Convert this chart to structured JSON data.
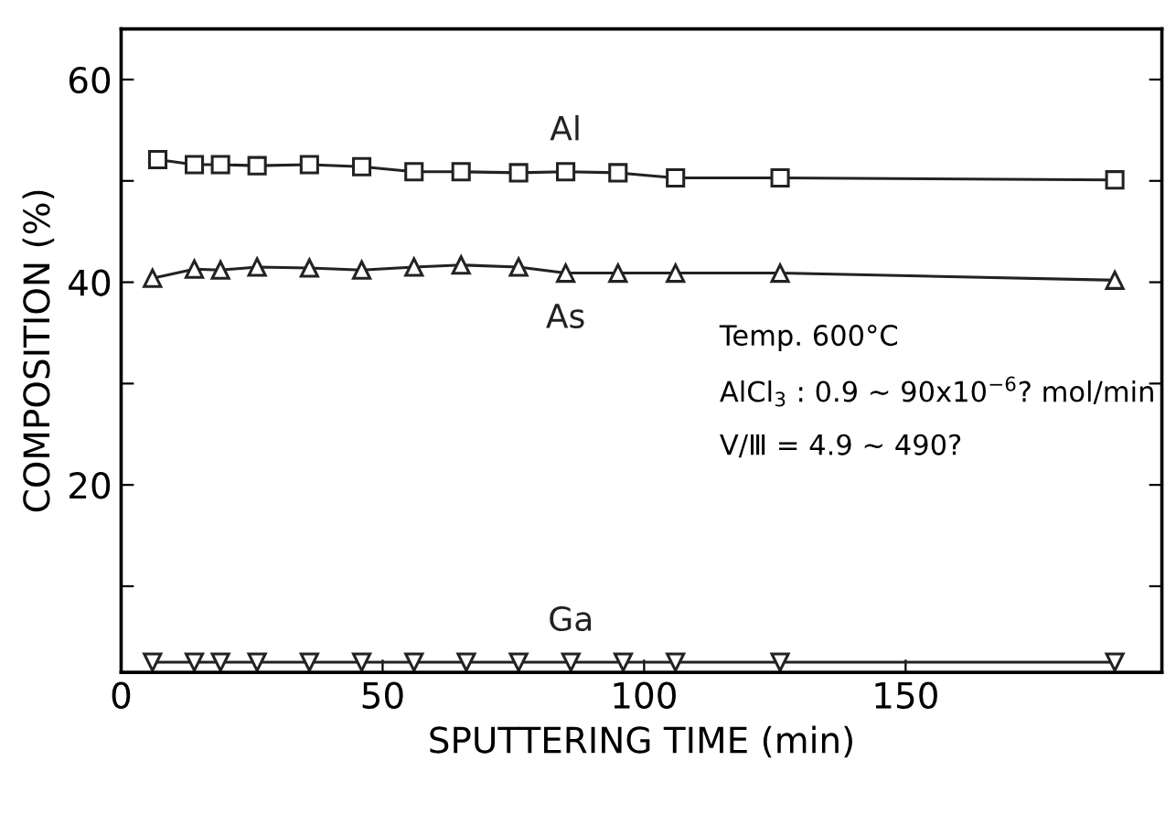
{
  "chart_data": {
    "type": "line",
    "xlabel": "SPUTTERING TIME (min)",
    "ylabel": "COMPOSITION (%)",
    "xlim": [
      0,
      199
    ],
    "ylim": [
      1.5,
      65
    ],
    "xticks": [
      0,
      50,
      100,
      150
    ],
    "yticks": [
      {
        "value": 10,
        "label": null
      },
      20,
      {
        "value": 30,
        "label": null
      },
      40,
      {
        "value": 50,
        "label": null
      },
      60
    ],
    "grid": false,
    "line_style": "solid",
    "series": [
      {
        "name": "Al",
        "color": "#222222",
        "marker": "square",
        "x": [
          7,
          14,
          19,
          26,
          36,
          46,
          56,
          65,
          76,
          85,
          95,
          106,
          126,
          190
        ],
        "values": [
          52.1,
          51.6,
          51.6,
          51.5,
          51.6,
          51.4,
          50.9,
          50.9,
          50.8,
          50.9,
          50.8,
          50.3,
          50.3,
          50.1
        ]
      },
      {
        "name": "As",
        "color": "#222222",
        "marker": "triangle",
        "x": [
          6,
          14,
          19,
          26,
          36,
          46,
          56,
          65,
          76,
          85,
          95,
          106,
          126,
          190
        ],
        "values": [
          40.4,
          41.3,
          41.2,
          41.5,
          41.4,
          41.2,
          41.5,
          41.7,
          41.5,
          40.9,
          40.9,
          40.9,
          40.9,
          40.2
        ]
      },
      {
        "name": "Ga",
        "color": "#222222",
        "marker": "triangle_down",
        "x": [
          6,
          14,
          19,
          26,
          36,
          46,
          56,
          66,
          76,
          86,
          96,
          106,
          126,
          190
        ],
        "values": [
          2.5,
          2.5,
          2.5,
          2.5,
          2.5,
          2.5,
          2.5,
          2.5,
          2.5,
          2.5,
          2.5,
          2.5,
          2.5,
          2.5
        ]
      }
    ],
    "annotations": [
      "Temp. 600°C",
      "AlCl$_{3}$ : 0.9 ~ 90x10$^{−6}$? mol/min",
      "V/Ⅲ = 4.9 ~ 490?"
    ]
  }
}
